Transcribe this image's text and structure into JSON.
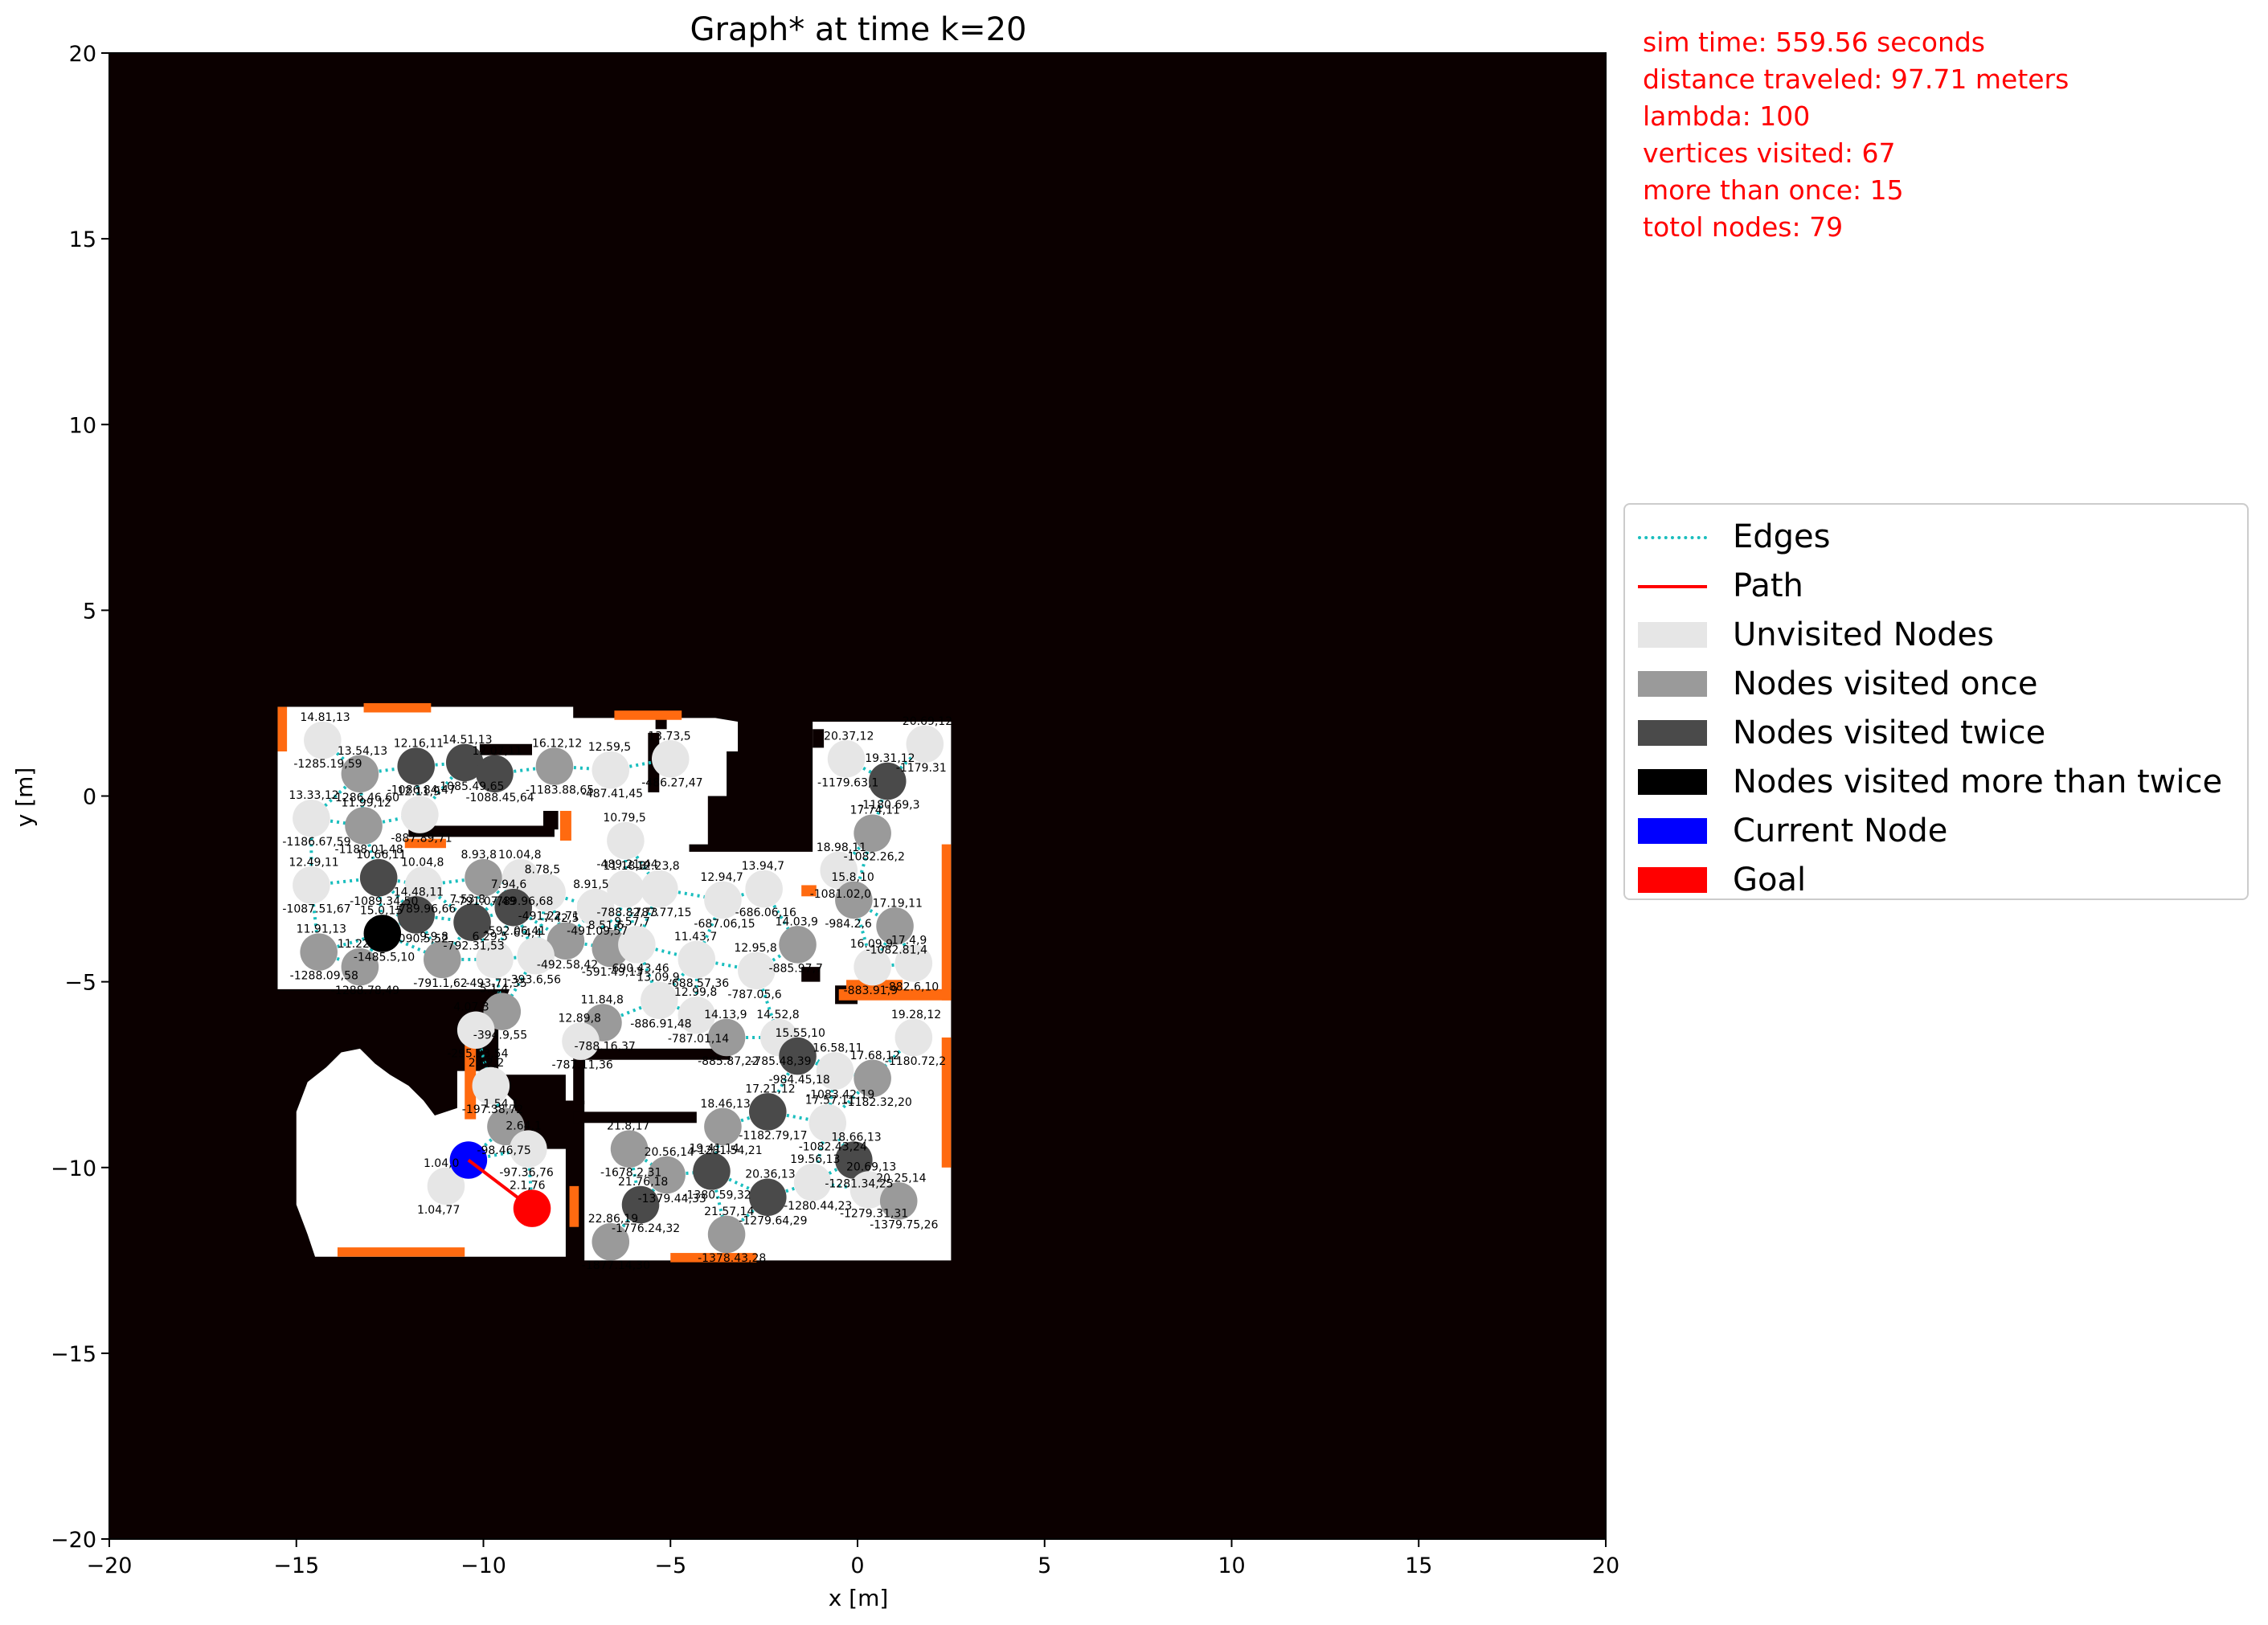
{
  "chart_data": {
    "type": "scatter",
    "title": "Graph* at time k=20",
    "xlabel": "x [m]",
    "ylabel": "y [m]",
    "xlim": [
      -20,
      20
    ],
    "ylim": [
      -20,
      20
    ],
    "xticks": [
      -20,
      -15,
      -10,
      -5,
      0,
      5,
      10,
      15,
      20
    ],
    "yticks": [
      -20,
      -15,
      -10,
      -5,
      0,
      5,
      10,
      15,
      20
    ],
    "xtick_labels": [
      "−20",
      "−15",
      "−10",
      "−5",
      "0",
      "5",
      "10",
      "15",
      "20"
    ],
    "ytick_labels": [
      "−20",
      "−15",
      "−10",
      "−5",
      "0",
      "5",
      "10",
      "15",
      "20"
    ],
    "grid": false,
    "legend_position": "right",
    "colors": {
      "background": "#0b0000",
      "free_space": "#ffffff",
      "obstacle_edge": "#ff6a10",
      "edges": "#1abebe",
      "path": "#ff0000",
      "unvisited": "#e6e6e6",
      "visited_once": "#9a9a9a",
      "visited_twice": "#4a4a4a",
      "visited_more": "#000000",
      "current": "#0000ff",
      "goal": "#ff0000"
    },
    "nodes": [
      {
        "x": -14.3,
        "y": 1.5,
        "label": "14.81,13",
        "cost": "-1285.19,59",
        "state": "unvisited"
      },
      {
        "x": -13.3,
        "y": 0.6,
        "label": "13.54,13",
        "cost": "-1286.46,60",
        "state": "once"
      },
      {
        "x": -11.8,
        "y": 0.8,
        "label": "12.16,11",
        "cost": "-1086.84,47",
        "state": "twice"
      },
      {
        "x": -10.5,
        "y": 0.9,
        "label": "14.51,13",
        "cost": "-1085.49,65",
        "state": "twice"
      },
      {
        "x": -9.7,
        "y": 0.6,
        "label": "12.07,11",
        "cost": "-1088.45,64",
        "state": "twice"
      },
      {
        "x": -8.1,
        "y": 0.8,
        "label": "16.12,12",
        "cost": "-1183.88,65",
        "state": "once"
      },
      {
        "x": -14.6,
        "y": -0.6,
        "label": "13.33,12",
        "cost": "-1186.67,59",
        "state": "unvisited"
      },
      {
        "x": -13.2,
        "y": -0.8,
        "label": "11.99,12",
        "cost": "-1188.01,48",
        "state": "once"
      },
      {
        "x": -11.7,
        "y": -0.5,
        "label": "12.11,9",
        "cost": "-887.89,71",
        "state": "unvisited"
      },
      {
        "x": -14.6,
        "y": -2.4,
        "label": "12.49,11",
        "cost": "-1087.51,67",
        "state": "unvisited"
      },
      {
        "x": -12.8,
        "y": -2.2,
        "label": "10.66,11",
        "cost": "-1089.34,50",
        "state": "twice"
      },
      {
        "x": -11.6,
        "y": -2.4,
        "label": "10.04,8",
        "cost": "-789.96,66",
        "state": "unvisited"
      },
      {
        "x": -10.0,
        "y": -2.2,
        "label": "8.93,8",
        "cost": "-791.07,49",
        "state": "once"
      },
      {
        "x": -9.0,
        "y": -2.2,
        "label": "10.04,8",
        "cost": "-789.96,68",
        "state": "unvisited"
      },
      {
        "x": -8.3,
        "y": -2.6,
        "label": "8.78,5",
        "cost": "-491.22,71",
        "state": "unvisited"
      },
      {
        "x": -14.4,
        "y": -4.2,
        "label": "11.91,13",
        "cost": "-1288.09,58",
        "state": "once"
      },
      {
        "x": -13.3,
        "y": -4.6,
        "label": "11.22,13",
        "cost": "-1288.78,49",
        "state": "once"
      },
      {
        "x": -12.7,
        "y": -3.7,
        "label": "15.0,15",
        "cost": "-1485.5,10",
        "state": "more"
      },
      {
        "x": -11.8,
        "y": -3.2,
        "label": "14.48,11",
        "cost": "-1090.5,52",
        "state": "twice"
      },
      {
        "x": -11.1,
        "y": -4.4,
        "label": "9.9,8",
        "cost": "-791.1,62",
        "state": "once"
      },
      {
        "x": -10.3,
        "y": -3.4,
        "label": "7.53,8",
        "cost": "-792.31,53",
        "state": "twice"
      },
      {
        "x": -9.2,
        "y": -3.0,
        "label": "7.94,6",
        "cost": "-592.06,41",
        "state": "twice"
      },
      {
        "x": -7.8,
        "y": -3.9,
        "label": "7.42,5",
        "cost": "-492.58,42",
        "state": "once"
      },
      {
        "x": -9.7,
        "y": -4.4,
        "label": "6.29,5",
        "cost": "-493.71,35",
        "state": "unvisited"
      },
      {
        "x": -8.6,
        "y": -4.3,
        "label": "6.4,4",
        "cost": "-393.6,56",
        "state": "unvisited"
      },
      {
        "x": -9.5,
        "y": -5.8,
        "label": "5.1,4",
        "cost": "-394.9,55",
        "state": "once"
      },
      {
        "x": -10.2,
        "y": -6.3,
        "label": "4.07,3",
        "cost": "-295.93,54",
        "state": "unvisited"
      },
      {
        "x": -9.8,
        "y": -7.8,
        "label": "2.62,2",
        "cost": "-197.38,72",
        "state": "unvisited"
      },
      {
        "x": -9.4,
        "y": -8.9,
        "label": "1.54,1",
        "cost": "-98.46,75",
        "state": "once"
      },
      {
        "x": -8.8,
        "y": -9.5,
        "label": "2.64,1",
        "cost": "-97.36,76",
        "state": "unvisited"
      },
      {
        "x": -11.0,
        "y": -10.5,
        "label": "1.04,0",
        "cost": "1.04,77",
        "state": "unvisited"
      },
      {
        "x": -6.6,
        "y": 0.7,
        "label": "12.59,5",
        "cost": "-487.41,45",
        "state": "unvisited"
      },
      {
        "x": -5.0,
        "y": 1.0,
        "label": "13.73,5",
        "cost": "-486.27,47",
        "state": "unvisited"
      },
      {
        "x": -6.2,
        "y": -1.2,
        "label": "10.79,5",
        "cost": "-489.21,44",
        "state": "unvisited"
      },
      {
        "x": -6.2,
        "y": -2.5,
        "label": "11.18,8",
        "cost": "-788.82,73",
        "state": "unvisited"
      },
      {
        "x": -5.3,
        "y": -2.5,
        "label": "12.23,8",
        "cost": "-787.77,15",
        "state": "unvisited"
      },
      {
        "x": -7.0,
        "y": -3.0,
        "label": "8.91,5",
        "cost": "-491.09,57",
        "state": "unvisited"
      },
      {
        "x": -6.6,
        "y": -4.1,
        "label": "8.51,6",
        "cost": "-591.49,13",
        "state": "once"
      },
      {
        "x": -5.9,
        "y": -4.0,
        "label": "9.57,7",
        "cost": "-690.43,46",
        "state": "unvisited"
      },
      {
        "x": -3.6,
        "y": -2.8,
        "label": "12.94,7",
        "cost": "-687.06,15",
        "state": "unvisited"
      },
      {
        "x": -2.5,
        "y": -2.5,
        "label": "13.94,7",
        "cost": "-686.06,16",
        "state": "unvisited"
      },
      {
        "x": -4.3,
        "y": -4.4,
        "label": "11.43,7",
        "cost": "-688.57,36",
        "state": "unvisited"
      },
      {
        "x": -2.7,
        "y": -4.7,
        "label": "12.95,8",
        "cost": "-787.05,6",
        "state": "unvisited"
      },
      {
        "x": -1.6,
        "y": -4.0,
        "label": "14.03,9",
        "cost": "-885.97,7",
        "state": "once"
      },
      {
        "x": -5.3,
        "y": -5.5,
        "label": "13.09,9",
        "cost": "-886.91,48",
        "state": "unvisited"
      },
      {
        "x": -4.3,
        "y": -5.9,
        "label": "12.99,8",
        "cost": "-787.01,14",
        "state": "unvisited"
      },
      {
        "x": -6.8,
        "y": -6.1,
        "label": "11.84,8",
        "cost": "-788.16,37",
        "state": "once"
      },
      {
        "x": -7.4,
        "y": -6.6,
        "label": "12.89,8",
        "cost": "-787.11,36",
        "state": "unvisited"
      },
      {
        "x": -3.5,
        "y": -6.5,
        "label": "14.13,9",
        "cost": "-885.87,22",
        "state": "once"
      },
      {
        "x": -2.1,
        "y": -6.5,
        "label": "14.52,8",
        "cost": "-785.48,39",
        "state": "unvisited"
      },
      {
        "x": -1.6,
        "y": -7.0,
        "label": "15.55,10",
        "cost": "-984.45,18",
        "state": "twice"
      },
      {
        "x": -0.3,
        "y": 1.0,
        "label": "20.37,12",
        "cost": "-1179.63,1",
        "state": "unvisited"
      },
      {
        "x": 1.8,
        "y": 1.4,
        "label": "20.69,12",
        "cost": "-1179.31",
        "state": "unvisited"
      },
      {
        "x": 0.8,
        "y": 0.4,
        "label": "19.31,12",
        "cost": "-1180.69,3",
        "state": "twice"
      },
      {
        "x": 0.4,
        "y": -1.0,
        "label": "17.74,11",
        "cost": "-1082.26,2",
        "state": "once"
      },
      {
        "x": -0.5,
        "y": -2.0,
        "label": "18.98,11",
        "cost": "-1081.02,0",
        "state": "unvisited"
      },
      {
        "x": -0.1,
        "y": -2.8,
        "label": "15.8,10",
        "cost": "-984.2,6",
        "state": "once"
      },
      {
        "x": 1.0,
        "y": -3.5,
        "label": "17.19,11",
        "cost": "-1082.81,4",
        "state": "once"
      },
      {
        "x": 0.4,
        "y": -4.6,
        "label": "16.09,9",
        "cost": "-883.91,9",
        "state": "unvisited"
      },
      {
        "x": 1.5,
        "y": -4.5,
        "label": "17.4,9",
        "cost": "-882.6,10",
        "state": "unvisited"
      },
      {
        "x": 1.5,
        "y": -6.5,
        "label": "19.28,12",
        "cost": "-1180.72,2",
        "state": "unvisited"
      },
      {
        "x": -0.6,
        "y": -7.4,
        "label": "16.58,11",
        "cost": "-1083.42,19",
        "state": "unvisited"
      },
      {
        "x": 0.4,
        "y": -7.6,
        "label": "17.68,12",
        "cost": "-1182.32,20",
        "state": "once"
      },
      {
        "x": -2.4,
        "y": -8.5,
        "label": "17.21,12",
        "cost": "-1182.79,17",
        "state": "twice"
      },
      {
        "x": -0.8,
        "y": -8.8,
        "label": "17.57,11",
        "cost": "-1082.43,24",
        "state": "unvisited"
      },
      {
        "x": -3.6,
        "y": -8.9,
        "label": "18.46,13",
        "cost": "-1281.54,21",
        "state": "once"
      },
      {
        "x": -0.1,
        "y": -9.8,
        "label": "18.66,13",
        "cost": "-1281.34,25",
        "state": "twice"
      },
      {
        "x": -1.2,
        "y": -10.4,
        "label": "19.56,13",
        "cost": "-1280.44,23",
        "state": "unvisited"
      },
      {
        "x": 0.3,
        "y": -10.6,
        "label": "20.69,13",
        "cost": "-1279.31,31",
        "state": "unvisited"
      },
      {
        "x": 1.1,
        "y": -10.9,
        "label": "20.25,14",
        "cost": "-1379.75,26",
        "state": "once"
      },
      {
        "x": -6.1,
        "y": -9.5,
        "label": "21.8,17",
        "cost": "-1678.2,31",
        "state": "once"
      },
      {
        "x": -5.1,
        "y": -10.2,
        "label": "20.56,14",
        "cost": "-1379.44,33",
        "state": "once"
      },
      {
        "x": -3.9,
        "y": -10.1,
        "label": "19.41,14",
        "cost": "-1380.59,32",
        "state": "twice"
      },
      {
        "x": -2.4,
        "y": -10.8,
        "label": "20.36,13",
        "cost": "-1279.64,29",
        "state": "twice"
      },
      {
        "x": -5.8,
        "y": -11.0,
        "label": "21.76,18",
        "cost": "-1776.24,32",
        "state": "twice"
      },
      {
        "x": -6.6,
        "y": -12.0,
        "label": "22.86,19",
        "cost": "-1877.14,30",
        "state": "once"
      },
      {
        "x": -3.5,
        "y": -11.8,
        "label": "21.57,14",
        "cost": "-1378.43,28",
        "state": "once"
      },
      {
        "x": -10.4,
        "y": -9.8,
        "label": "",
        "cost": "",
        "state": "current"
      },
      {
        "x": -8.7,
        "y": -11.1,
        "label": "2.1,76",
        "cost": "",
        "state": "goal"
      }
    ],
    "path": [
      [
        -10.4,
        -9.8
      ],
      [
        -8.7,
        -11.1
      ]
    ],
    "legend": [
      {
        "label": "Edges",
        "kind": "dotted-line",
        "color": "#1abebe"
      },
      {
        "label": "Path",
        "kind": "line",
        "color": "#ff0000"
      },
      {
        "label": "Unvisited Nodes",
        "kind": "patch",
        "color": "#e6e6e6"
      },
      {
        "label": "Nodes visited once",
        "kind": "patch",
        "color": "#9a9a9a"
      },
      {
        "label": "Nodes visited twice",
        "kind": "patch",
        "color": "#4a4a4a"
      },
      {
        "label": "Nodes visited more than twice",
        "kind": "patch",
        "color": "#000000"
      },
      {
        "label": "Current Node",
        "kind": "patch",
        "color": "#0000ff"
      },
      {
        "label": "Goal",
        "kind": "patch",
        "color": "#ff0000"
      }
    ]
  },
  "info": {
    "sim_time": "sim time: 559.56 seconds",
    "distance": "distance traveled: 97.71 meters",
    "lambda": "lambda: 100",
    "vertices_visited": "vertices visited: 67",
    "more_than_once": "more than once: 15",
    "total_nodes": "totol nodes: 79"
  }
}
